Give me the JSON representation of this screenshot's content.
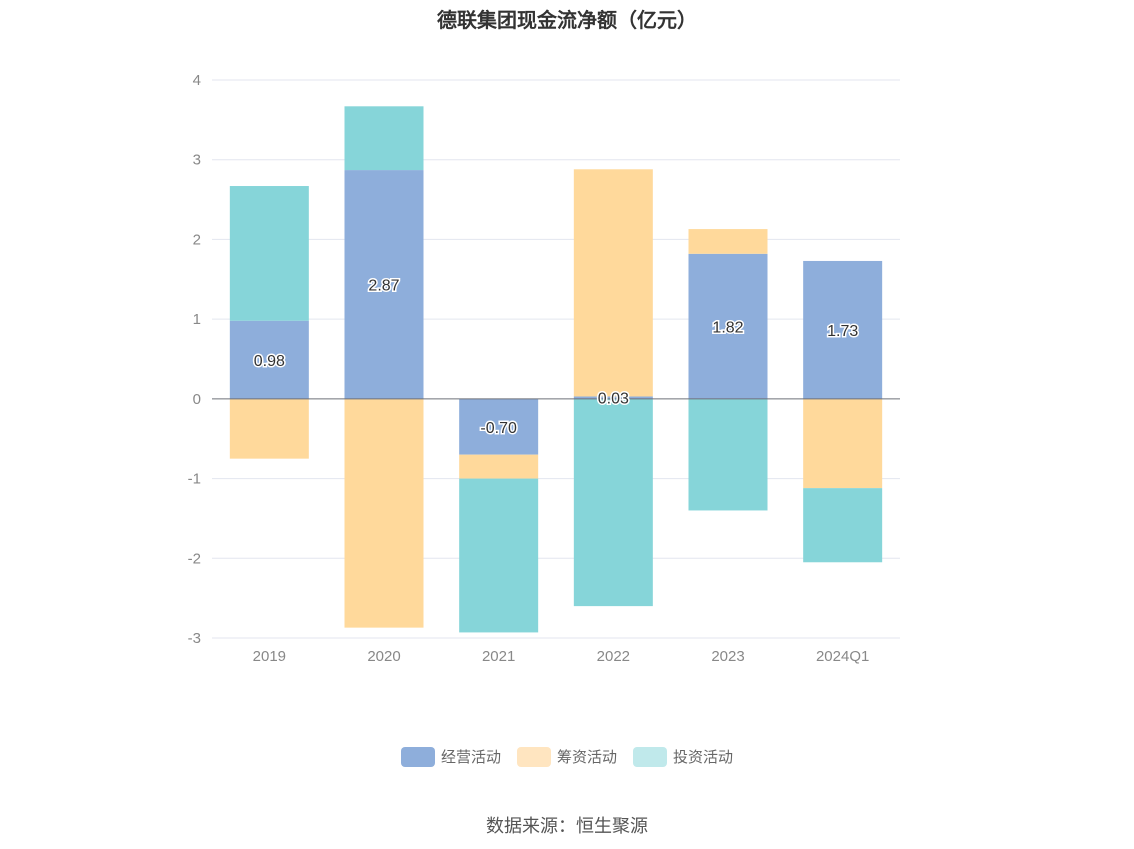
{
  "chart_data": {
    "type": "bar",
    "stacked": true,
    "title": "德联集团现金流净额（亿元）",
    "categories": [
      "2019",
      "2020",
      "2021",
      "2022",
      "2023",
      "2024Q1"
    ],
    "series": [
      {
        "name": "经营活动",
        "color": "#8eaedb",
        "values": [
          0.98,
          2.87,
          -0.7,
          0.03,
          1.82,
          1.73
        ]
      },
      {
        "name": "筹资活动",
        "color": "#ffd99b",
        "values": [
          -0.75,
          -2.87,
          -0.3,
          2.85,
          0.31,
          -1.12
        ]
      },
      {
        "name": "投资活动",
        "color": "#86d5d9",
        "values": [
          1.69,
          0.8,
          -1.93,
          -2.6,
          -1.4,
          -0.93
        ]
      }
    ],
    "data_labels": [
      "0.98",
      "2.87",
      "-0.70",
      "0.03",
      "1.82",
      "1.73"
    ],
    "ylim": [
      -3,
      4
    ],
    "yticks": [
      4,
      3,
      2,
      1,
      0,
      -1,
      -2,
      -3
    ],
    "grid": true,
    "legend_position": "bottom"
  },
  "legend_labels": [
    "经营活动",
    "筹资活动",
    "投资活动"
  ],
  "legend_colors": [
    "#8eaedb",
    "#ffe5c0",
    "#c0e9eb"
  ],
  "source": "数据来源：恒生聚源"
}
